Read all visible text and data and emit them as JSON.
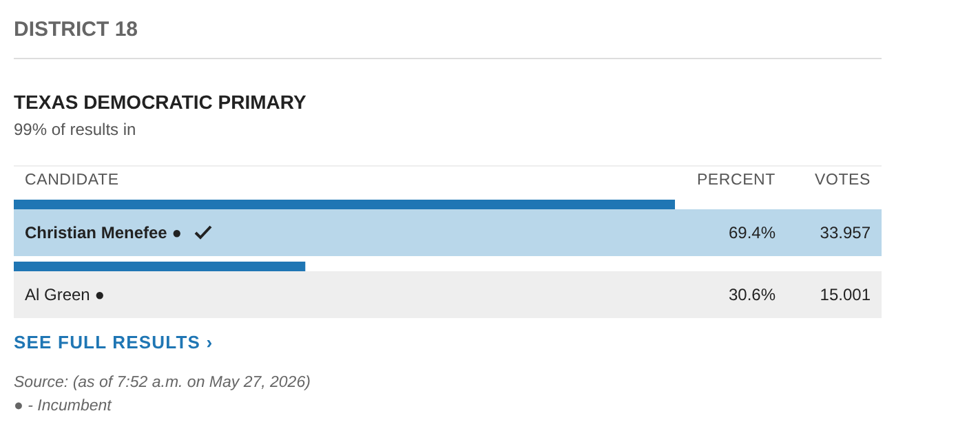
{
  "chart_data": {
    "type": "bar",
    "orientation": "horizontal",
    "title": "TEXAS DEMOCRATIC PRIMARY",
    "subtitle": "99% of results in",
    "categories": [
      "Christian Menefee ●",
      "Al Green ●"
    ],
    "values": [
      69.4,
      30.6
    ],
    "color": "#1f76b4",
    "value_labels": [
      "69.4%",
      "30.6%"
    ],
    "annotations": [
      "DISTRICT 18",
      "CANDIDATE",
      "PERCENT",
      "VOTES",
      "33.957",
      "15.001",
      "SEE FULL RESULTS ›",
      "Source: (as of 7:52 a.m. on May 27, 2026)",
      "● - Incumbent"
    ]
  }
}
